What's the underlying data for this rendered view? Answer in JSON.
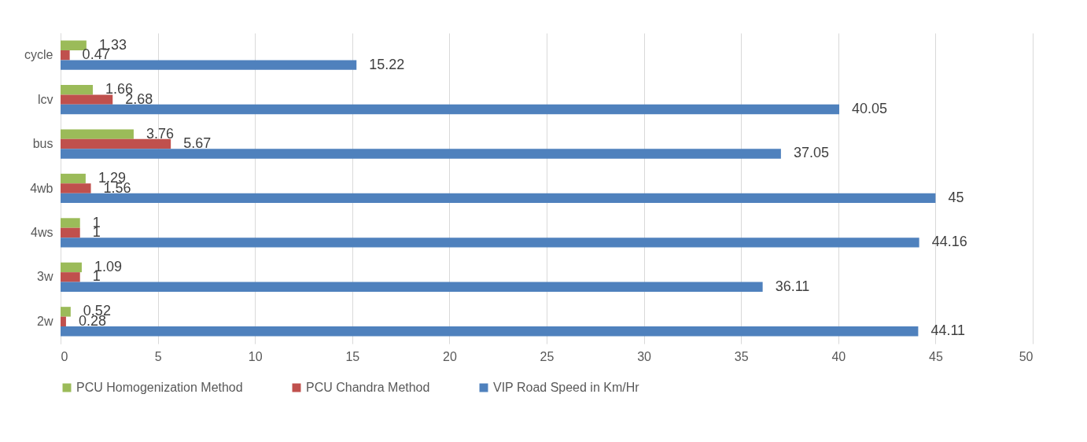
{
  "chart_data": {
    "type": "bar",
    "orientation": "horizontal",
    "categories": [
      "cycle",
      "lcv",
      "bus",
      "4wb",
      "4ws",
      "3w",
      "2w"
    ],
    "series": [
      {
        "name": "PCU Homogenization Method",
        "color": "#9bbb59",
        "values": [
          1.33,
          1.66,
          3.76,
          1.29,
          1,
          1.09,
          0.52
        ]
      },
      {
        "name": "PCU Chandra Method",
        "color": "#c0504d",
        "values": [
          0.47,
          2.68,
          5.67,
          1.56,
          1,
          1,
          0.28
        ]
      },
      {
        "name": "VIP Road Speed in Km/Hr",
        "color": "#4f81bd",
        "values": [
          15.22,
          40.05,
          37.05,
          45,
          44.16,
          36.11,
          44.11
        ]
      }
    ],
    "xlim": [
      0,
      50
    ],
    "xticks": [
      0,
      5,
      10,
      15,
      20,
      25,
      30,
      35,
      40,
      45,
      50
    ],
    "grid": "x",
    "legend": "bottom",
    "data_labels": true
  }
}
